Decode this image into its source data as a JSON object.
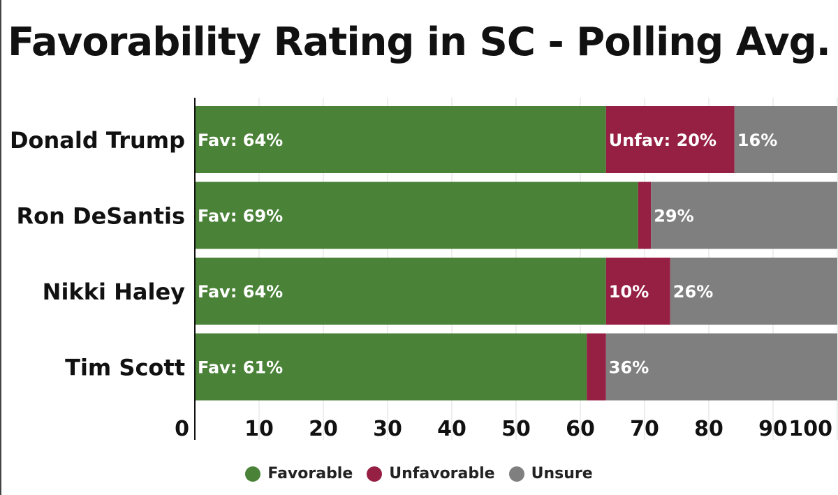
{
  "chart_data": {
    "type": "bar",
    "orientation": "horizontal",
    "stacked": true,
    "title": "Favorability Rating in SC  - Polling Avg.",
    "categories": [
      "Donald Trump",
      "Ron DeSantis",
      "Nikki Haley",
      "Tim Scott"
    ],
    "series": [
      {
        "name": "Favorable",
        "color": "#4a8238",
        "values": [
          64,
          69,
          64,
          61
        ],
        "labels": [
          "Fav: 64%",
          "Fav: 69%",
          "Fav: 64%",
          "Fav: 61%"
        ]
      },
      {
        "name": "Unfavorable",
        "color": "#962043",
        "values": [
          20,
          2,
          10,
          3
        ],
        "labels": [
          "Unfav: 20%",
          "",
          "10%",
          ""
        ]
      },
      {
        "name": "Unsure",
        "color": "#7f7f7f",
        "values": [
          16,
          29,
          26,
          36
        ],
        "labels": [
          "16%",
          "29%",
          "26%",
          "36%"
        ]
      }
    ],
    "xlim": [
      0,
      100
    ],
    "xticks": [
      0,
      10,
      20,
      30,
      40,
      50,
      60,
      70,
      80,
      90,
      100
    ],
    "grid": true,
    "legend_position": "bottom-center"
  }
}
